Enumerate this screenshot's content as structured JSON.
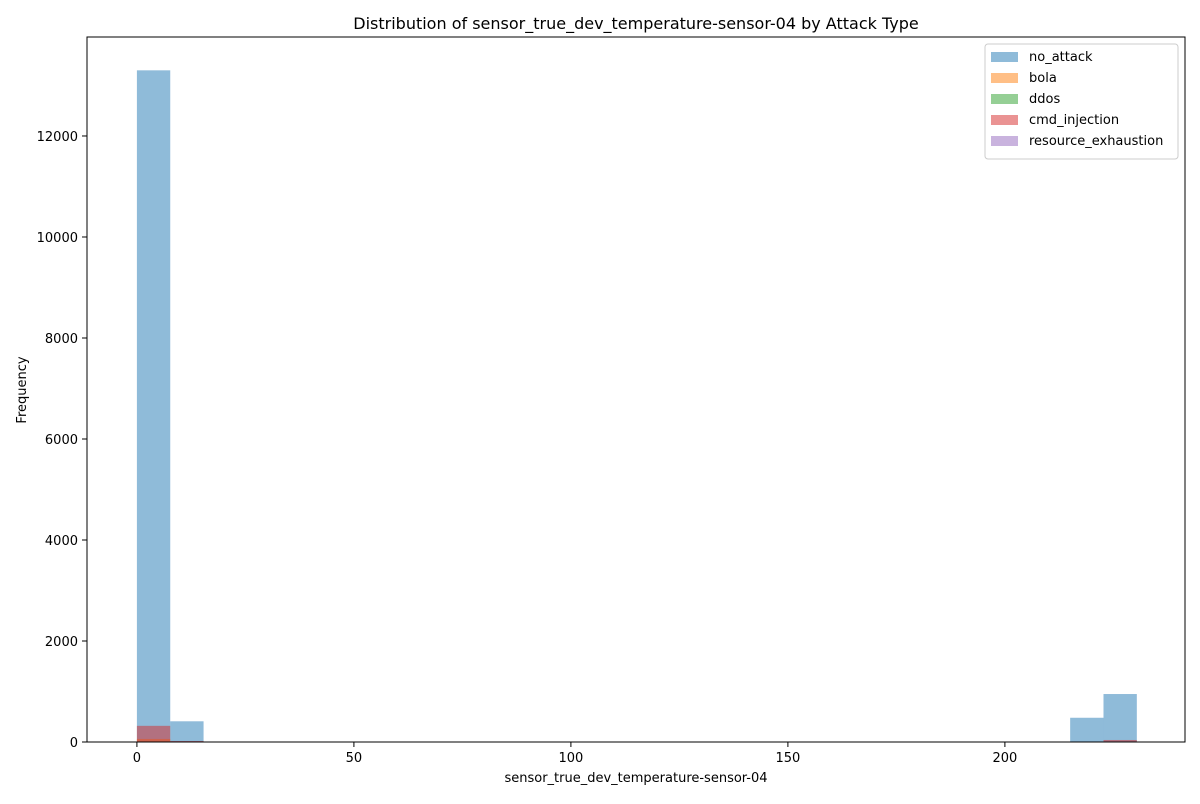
{
  "chart_data": {
    "type": "bar",
    "title": "Distribution of sensor_true_dev_temperature-sensor-04 by Attack Type",
    "xlabel": "sensor_true_dev_temperature-sensor-04",
    "ylabel": "Frequency",
    "xlim": [
      -11.5,
      241.5
    ],
    "ylim": [
      0,
      13960
    ],
    "x_ticks": [
      0,
      50,
      100,
      150,
      200
    ],
    "y_ticks": [
      0,
      2000,
      4000,
      6000,
      8000,
      10000,
      12000
    ],
    "grid": false,
    "legend_position": "top-right",
    "bin_edges": [
      0,
      7.68,
      15.36,
      23.04,
      30.72,
      38.4,
      46.08,
      53.76,
      61.44,
      69.12,
      76.8,
      84.48,
      92.16,
      99.84,
      107.52,
      115.2,
      122.88,
      130.56,
      138.24,
      145.92,
      153.6,
      161.28,
      168.96,
      176.64,
      184.32,
      192.0,
      199.68,
      207.36,
      215.04,
      222.72,
      230.4
    ],
    "series": [
      {
        "name": "no_attack",
        "color": "#1f77b4",
        "values": [
          13300,
          410,
          0,
          0,
          0,
          0,
          0,
          0,
          0,
          0,
          0,
          0,
          0,
          0,
          0,
          0,
          0,
          0,
          0,
          0,
          0,
          0,
          0,
          0,
          0,
          0,
          0,
          0,
          480,
          950
        ]
      },
      {
        "name": "bola",
        "color": "#ff7f0e",
        "values": [
          60,
          5,
          0,
          0,
          0,
          0,
          0,
          0,
          0,
          0,
          0,
          0,
          0,
          0,
          0,
          0,
          0,
          0,
          0,
          0,
          0,
          0,
          0,
          0,
          0,
          0,
          0,
          0,
          5,
          10
        ]
      },
      {
        "name": "ddos",
        "color": "#2ca02c",
        "values": [
          10,
          0,
          0,
          0,
          0,
          0,
          0,
          0,
          0,
          0,
          0,
          0,
          0,
          0,
          0,
          0,
          0,
          0,
          0,
          0,
          0,
          0,
          0,
          0,
          0,
          0,
          0,
          0,
          0,
          3
        ]
      },
      {
        "name": "cmd_injection",
        "color": "#d62728",
        "values": [
          320,
          20,
          0,
          0,
          0,
          0,
          0,
          0,
          0,
          0,
          0,
          0,
          0,
          0,
          0,
          0,
          0,
          0,
          0,
          0,
          0,
          0,
          0,
          0,
          0,
          0,
          0,
          0,
          10,
          40
        ]
      },
      {
        "name": "resource_exhaustion",
        "color": "#9467bd",
        "values": [
          8,
          0,
          0,
          0,
          0,
          0,
          0,
          0,
          0,
          0,
          0,
          0,
          0,
          0,
          0,
          0,
          0,
          0,
          0,
          0,
          0,
          0,
          0,
          0,
          0,
          0,
          0,
          0,
          0,
          2
        ]
      }
    ]
  }
}
